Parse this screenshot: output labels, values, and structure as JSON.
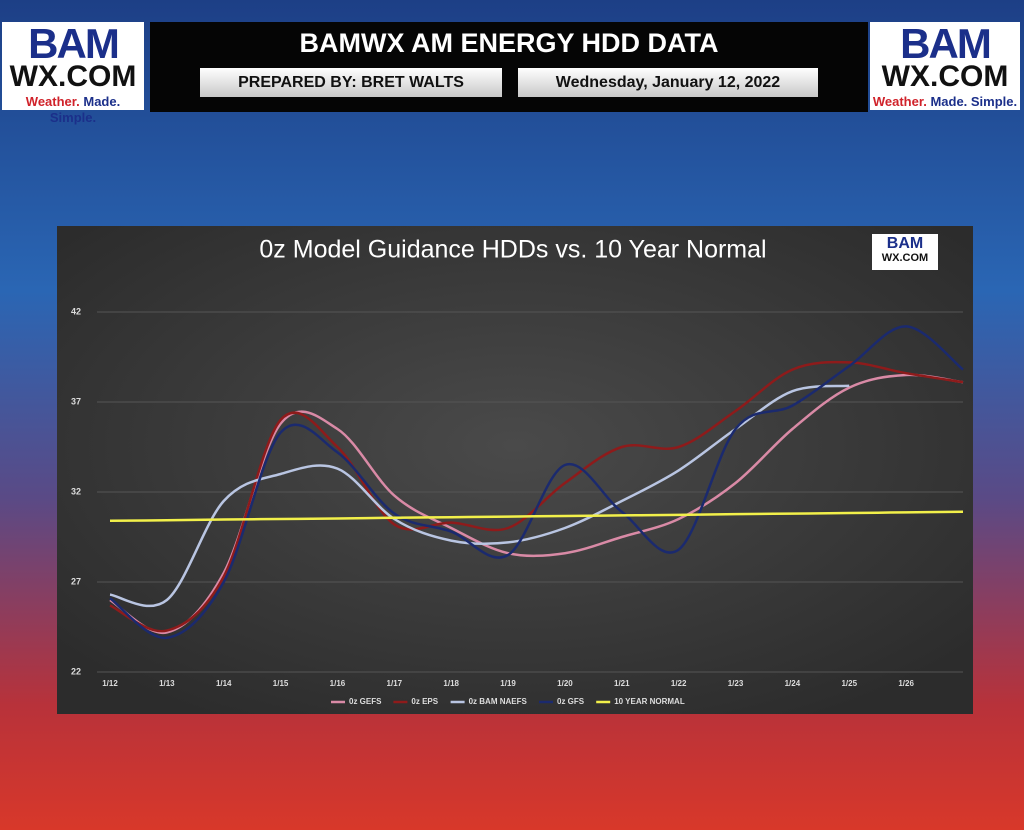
{
  "header": {
    "title": "BAMWX AM ENERGY HDD DATA",
    "prepared_by": "PREPARED BY: BRET WALTS",
    "date": "Wednesday, January 12, 2022",
    "logo": {
      "top": "BAM",
      "bottom": "WX.COM",
      "tagline_a": "Weather.",
      "tagline_b": "Made. Simple."
    }
  },
  "chart_data": {
    "type": "line",
    "title": "0z Model Guidance HDDs vs. 10 Year Normal",
    "categories": [
      "1/12",
      "1/13",
      "1/14",
      "1/15",
      "1/16",
      "1/17",
      "1/18",
      "1/19",
      "1/20",
      "1/21",
      "1/22",
      "1/23",
      "1/24",
      "1/25",
      "1/26",
      null
    ],
    "series": [
      {
        "name": "0z GEFS",
        "color": "#d98aa6",
        "values": [
          26.0,
          24.2,
          27.5,
          35.8,
          35.5,
          31.8,
          30.0,
          28.6,
          28.6,
          29.5,
          30.5,
          32.5,
          35.5,
          37.8,
          38.5,
          38.1
        ]
      },
      {
        "name": "0z EPS",
        "color": "#8e1b1b",
        "values": [
          25.7,
          24.3,
          27.3,
          36.0,
          34.5,
          30.2,
          30.3,
          30.0,
          32.5,
          34.5,
          34.5,
          36.5,
          38.8,
          39.2,
          38.6,
          38.1
        ]
      },
      {
        "name": "0z BAM NAEFS",
        "color": "#b9c5e2",
        "values": [
          26.3,
          26.0,
          31.5,
          33.0,
          33.3,
          30.5,
          29.3,
          29.2,
          30.0,
          31.5,
          33.2,
          35.5,
          37.6,
          37.9,
          null,
          null
        ]
      },
      {
        "name": "0z GFS",
        "color": "#1b2a6e",
        "values": [
          26.1,
          23.9,
          27.0,
          35.3,
          34.2,
          30.8,
          29.8,
          28.5,
          33.5,
          30.9,
          28.8,
          35.5,
          36.8,
          39.0,
          41.2,
          38.8
        ]
      },
      {
        "name": "10 YEAR NORMAL",
        "color": "#f2f04a",
        "values": [
          30.4,
          30.43,
          30.47,
          30.5,
          30.53,
          30.57,
          30.6,
          30.63,
          30.67,
          30.7,
          30.73,
          30.77,
          30.8,
          30.83,
          30.87,
          30.9
        ]
      }
    ],
    "ylim": [
      22,
      43
    ],
    "yticks": [
      22,
      27,
      32,
      37,
      42
    ],
    "grid": true,
    "legend": "bottom"
  }
}
